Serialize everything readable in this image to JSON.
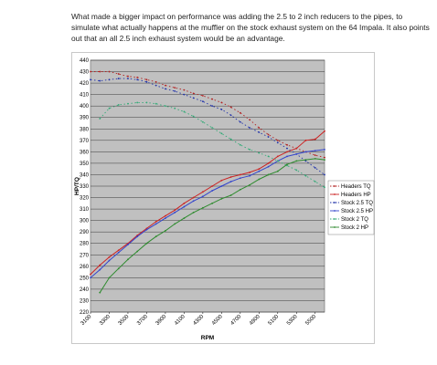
{
  "post": {
    "text": "What made a bigger impact on performance was adding the 2.5 to 2 inch reducers to the pipes, to simulate what actually happens at the muffler on the stock exhaust system on the 64 Impala. It also points out that an all 2.5 inch exhaust system would be an advantage."
  },
  "chart_data": {
    "type": "line",
    "xlabel": "RPM",
    "ylabel": "HP/TQ",
    "ylim": [
      220,
      440
    ],
    "y_ticks": [
      220,
      230,
      240,
      250,
      260,
      270,
      280,
      290,
      300,
      310,
      320,
      330,
      340,
      350,
      360,
      370,
      380,
      390,
      400,
      410,
      420,
      430,
      440
    ],
    "x_tick_labels": [
      "3100",
      "3300",
      "3500",
      "3700",
      "3900",
      "4100",
      "4300",
      "4500",
      "4700",
      "4900",
      "5100",
      "5300",
      "5500"
    ],
    "xlim": [
      3100,
      5600
    ],
    "grid": true,
    "legend_position": "right",
    "plot_background": "#c0c0c0",
    "series": [
      {
        "name": "Headers TQ",
        "color": "#b22222",
        "dash": "dotted",
        "marker": true,
        "x": [
          3100,
          3200,
          3300,
          3400,
          3500,
          3600,
          3700,
          3800,
          3900,
          4000,
          4100,
          4200,
          4300,
          4400,
          4500,
          4600,
          4700,
          4800,
          4900,
          5000,
          5100,
          5200,
          5300,
          5400,
          5500,
          5600
        ],
        "y": [
          430,
          430,
          430,
          428,
          426,
          425,
          423,
          421,
          418,
          416,
          414,
          411,
          409,
          406,
          403,
          399,
          394,
          388,
          381,
          375,
          370,
          366,
          363,
          360,
          357,
          355
        ]
      },
      {
        "name": "Headers HP",
        "color": "#cc2222",
        "dash": "solid",
        "marker": true,
        "x": [
          3100,
          3200,
          3300,
          3400,
          3500,
          3600,
          3700,
          3800,
          3900,
          4000,
          4100,
          4200,
          4300,
          4400,
          4500,
          4600,
          4700,
          4800,
          4900,
          5000,
          5100,
          5200,
          5300,
          5400,
          5500,
          5600
        ],
        "y": [
          253,
          261,
          268,
          274,
          280,
          287,
          293,
          299,
          304,
          309,
          315,
          320,
          325,
          330,
          335,
          338,
          340,
          342,
          345,
          350,
          356,
          360,
          363,
          370,
          371,
          378
        ]
      },
      {
        "name": "Stock 2.5 TQ",
        "color": "#2233aa",
        "dash": "dotted",
        "marker": true,
        "x": [
          3100,
          3200,
          3300,
          3400,
          3500,
          3600,
          3700,
          3800,
          3900,
          4000,
          4100,
          4200,
          4300,
          4400,
          4500,
          4600,
          4700,
          4800,
          4900,
          5000,
          5100,
          5200,
          5300,
          5400,
          5500,
          5600
        ],
        "y": [
          423,
          422,
          423,
          424,
          424,
          423,
          421,
          418,
          415,
          413,
          410,
          407,
          404,
          400,
          397,
          392,
          386,
          381,
          377,
          373,
          368,
          363,
          358,
          352,
          346,
          340
        ]
      },
      {
        "name": "Stock 2.5 HP",
        "color": "#3344cc",
        "dash": "solid",
        "marker": true,
        "x": [
          3100,
          3200,
          3300,
          3400,
          3500,
          3600,
          3700,
          3800,
          3900,
          4000,
          4100,
          4200,
          4300,
          4400,
          4500,
          4600,
          4700,
          4800,
          4900,
          5000,
          5100,
          5200,
          5300,
          5400,
          5500,
          5600
        ],
        "y": [
          250,
          257,
          265,
          272,
          279,
          286,
          292,
          297,
          302,
          307,
          312,
          317,
          321,
          326,
          330,
          334,
          337,
          339,
          343,
          347,
          352,
          356,
          358,
          360,
          361,
          362
        ]
      },
      {
        "name": "Stock 2 TQ",
        "color": "#33aa77",
        "dash": "dotted",
        "marker": true,
        "x": [
          3200,
          3300,
          3400,
          3500,
          3600,
          3700,
          3800,
          3900,
          4000,
          4100,
          4200,
          4300,
          4400,
          4500,
          4600,
          4700,
          4800,
          4900,
          5000,
          5100,
          5200,
          5300,
          5400,
          5500,
          5600
        ],
        "y": [
          389,
          398,
          401,
          402,
          403,
          403,
          402,
          400,
          398,
          395,
          391,
          386,
          381,
          376,
          371,
          366,
          362,
          359,
          356,
          352,
          348,
          344,
          339,
          334,
          329
        ]
      },
      {
        "name": "Stock 2 HP",
        "color": "#2e8b2e",
        "dash": "solid",
        "marker": true,
        "x": [
          3200,
          3300,
          3400,
          3500,
          3600,
          3700,
          3800,
          3900,
          4000,
          4100,
          4200,
          4300,
          4400,
          4500,
          4600,
          4700,
          4800,
          4900,
          5000,
          5100,
          5200,
          5300,
          5400,
          5500,
          5600
        ],
        "y": [
          237,
          250,
          258,
          266,
          273,
          280,
          286,
          291,
          297,
          302,
          307,
          311,
          315,
          319,
          322,
          327,
          331,
          336,
          340,
          343,
          349,
          352,
          353,
          354,
          353
        ]
      }
    ]
  }
}
